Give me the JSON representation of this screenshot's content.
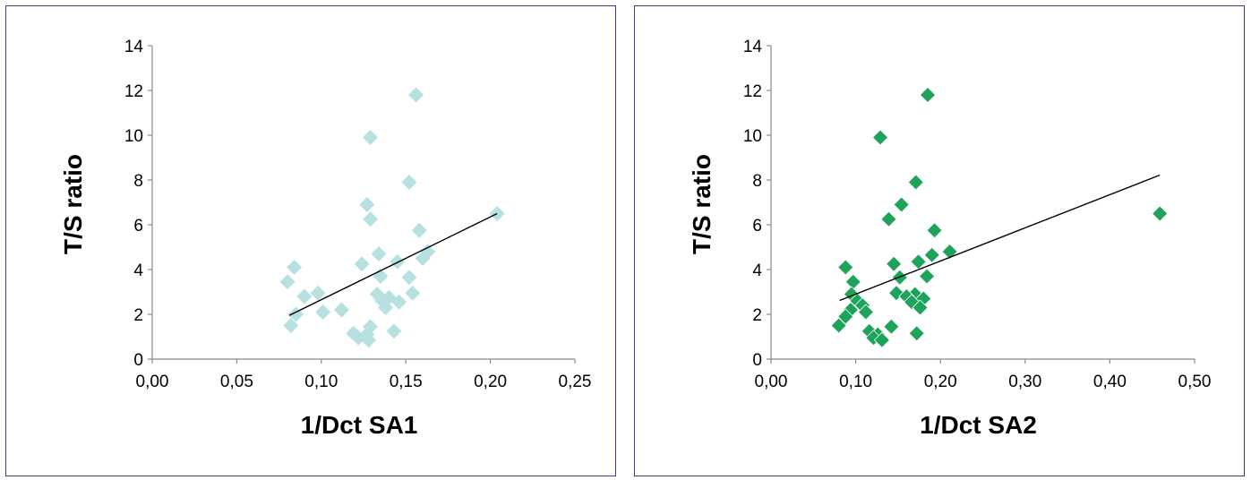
{
  "chart_data": [
    {
      "type": "scatter",
      "xlabel": "1/Dct SA1",
      "ylabel": "T/S ratio",
      "xlim": [
        0,
        0.25
      ],
      "ylim": [
        0,
        14
      ],
      "x_ticks": [
        "0,00",
        "0,05",
        "0,10",
        "0,15",
        "0,20",
        "0,25"
      ],
      "y_ticks": [
        "0",
        "2",
        "4",
        "6",
        "8",
        "10",
        "12",
        "14"
      ],
      "marker": "diamond",
      "color": "#b7e1e1",
      "trendline": {
        "x": [
          0.081,
          0.204
        ],
        "y": [
          1.95,
          6.5
        ],
        "color": "#000000"
      },
      "points": [
        {
          "x": 0.204,
          "y": 6.5
        },
        {
          "x": 0.156,
          "y": 11.8
        },
        {
          "x": 0.129,
          "y": 9.9
        },
        {
          "x": 0.152,
          "y": 7.9
        },
        {
          "x": 0.127,
          "y": 6.9
        },
        {
          "x": 0.129,
          "y": 6.25
        },
        {
          "x": 0.158,
          "y": 5.75
        },
        {
          "x": 0.163,
          "y": 4.8
        },
        {
          "x": 0.134,
          "y": 4.7
        },
        {
          "x": 0.16,
          "y": 4.5
        },
        {
          "x": 0.145,
          "y": 4.35
        },
        {
          "x": 0.124,
          "y": 4.25
        },
        {
          "x": 0.084,
          "y": 4.1
        },
        {
          "x": 0.135,
          "y": 3.7
        },
        {
          "x": 0.152,
          "y": 3.65
        },
        {
          "x": 0.08,
          "y": 3.45
        },
        {
          "x": 0.098,
          "y": 2.95
        },
        {
          "x": 0.154,
          "y": 2.95
        },
        {
          "x": 0.133,
          "y": 2.9
        },
        {
          "x": 0.09,
          "y": 2.8
        },
        {
          "x": 0.14,
          "y": 2.75
        },
        {
          "x": 0.136,
          "y": 2.6
        },
        {
          "x": 0.146,
          "y": 2.55
        },
        {
          "x": 0.138,
          "y": 2.3
        },
        {
          "x": 0.112,
          "y": 2.2
        },
        {
          "x": 0.101,
          "y": 2.1
        },
        {
          "x": 0.085,
          "y": 2.0
        },
        {
          "x": 0.082,
          "y": 1.5
        },
        {
          "x": 0.129,
          "y": 1.45
        },
        {
          "x": 0.143,
          "y": 1.25
        },
        {
          "x": 0.119,
          "y": 1.15
        },
        {
          "x": 0.127,
          "y": 1.1
        },
        {
          "x": 0.122,
          "y": 0.95
        },
        {
          "x": 0.128,
          "y": 0.85
        }
      ]
    },
    {
      "type": "scatter",
      "xlabel": "1/Dct SA2",
      "ylabel": "T/S ratio",
      "xlim": [
        0,
        0.5
      ],
      "ylim": [
        0,
        14
      ],
      "x_ticks": [
        "0,00",
        "0,10",
        "0,20",
        "0,30",
        "0,40",
        "0,50"
      ],
      "y_ticks": [
        "0",
        "2",
        "4",
        "6",
        "8",
        "10",
        "12",
        "14"
      ],
      "marker": "diamond",
      "color": "#1ea35a",
      "trendline": {
        "x": [
          0.081,
          0.459
        ],
        "y": [
          2.62,
          8.22
        ],
        "color": "#000000"
      },
      "points": [
        {
          "x": 0.459,
          "y": 6.5
        },
        {
          "x": 0.185,
          "y": 11.8
        },
        {
          "x": 0.129,
          "y": 9.9
        },
        {
          "x": 0.171,
          "y": 7.9
        },
        {
          "x": 0.154,
          "y": 6.9
        },
        {
          "x": 0.139,
          "y": 6.25
        },
        {
          "x": 0.193,
          "y": 5.75
        },
        {
          "x": 0.211,
          "y": 4.8
        },
        {
          "x": 0.19,
          "y": 4.65
        },
        {
          "x": 0.174,
          "y": 4.35
        },
        {
          "x": 0.145,
          "y": 4.25
        },
        {
          "x": 0.088,
          "y": 4.1
        },
        {
          "x": 0.184,
          "y": 3.7
        },
        {
          "x": 0.152,
          "y": 3.65
        },
        {
          "x": 0.097,
          "y": 3.45
        },
        {
          "x": 0.148,
          "y": 2.95
        },
        {
          "x": 0.095,
          "y": 2.9
        },
        {
          "x": 0.17,
          "y": 2.9
        },
        {
          "x": 0.16,
          "y": 2.8
        },
        {
          "x": 0.18,
          "y": 2.7
        },
        {
          "x": 0.102,
          "y": 2.6
        },
        {
          "x": 0.166,
          "y": 2.55
        },
        {
          "x": 0.108,
          "y": 2.4
        },
        {
          "x": 0.176,
          "y": 2.3
        },
        {
          "x": 0.094,
          "y": 2.2
        },
        {
          "x": 0.112,
          "y": 2.1
        },
        {
          "x": 0.088,
          "y": 1.9
        },
        {
          "x": 0.08,
          "y": 1.5
        },
        {
          "x": 0.142,
          "y": 1.45
        },
        {
          "x": 0.116,
          "y": 1.25
        },
        {
          "x": 0.172,
          "y": 1.15
        },
        {
          "x": 0.126,
          "y": 1.1
        },
        {
          "x": 0.121,
          "y": 0.95
        },
        {
          "x": 0.131,
          "y": 0.85
        }
      ]
    }
  ]
}
